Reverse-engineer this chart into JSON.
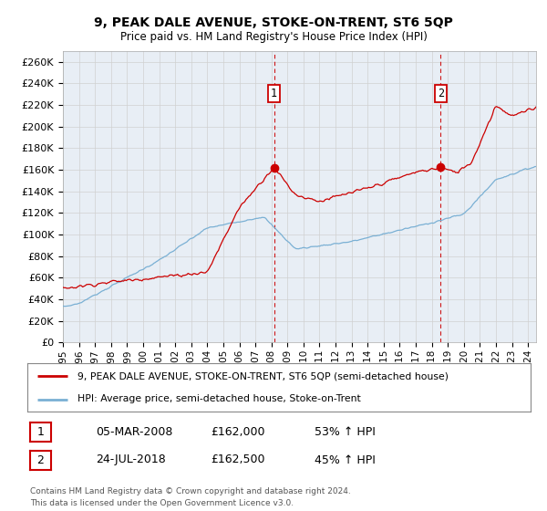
{
  "title": "9, PEAK DALE AVENUE, STOKE-ON-TRENT, ST6 5QP",
  "subtitle": "Price paid vs. HM Land Registry's House Price Index (HPI)",
  "legend_line1": "9, PEAK DALE AVENUE, STOKE-ON-TRENT, ST6 5QP (semi-detached house)",
  "legend_line2": "HPI: Average price, semi-detached house, Stoke-on-Trent",
  "sale1_label": "1",
  "sale1_date": "05-MAR-2008",
  "sale1_price": "£162,000",
  "sale1_hpi": "53% ↑ HPI",
  "sale1_year": 2008.17,
  "sale2_label": "2",
  "sale2_date": "24-JUL-2018",
  "sale2_price": "£162,500",
  "sale2_hpi": "45% ↑ HPI",
  "sale2_year": 2018.56,
  "red_color": "#cc0000",
  "blue_color": "#7ab0d4",
  "dashed_color": "#cc0000",
  "background_color": "#ffffff",
  "grid_color": "#d0d0d0",
  "ylim_min": 0,
  "ylim_max": 270000,
  "xmin": 1995,
  "xmax": 2024.5,
  "footer": "Contains HM Land Registry data © Crown copyright and database right 2024.\nThis data is licensed under the Open Government Licence v3.0."
}
